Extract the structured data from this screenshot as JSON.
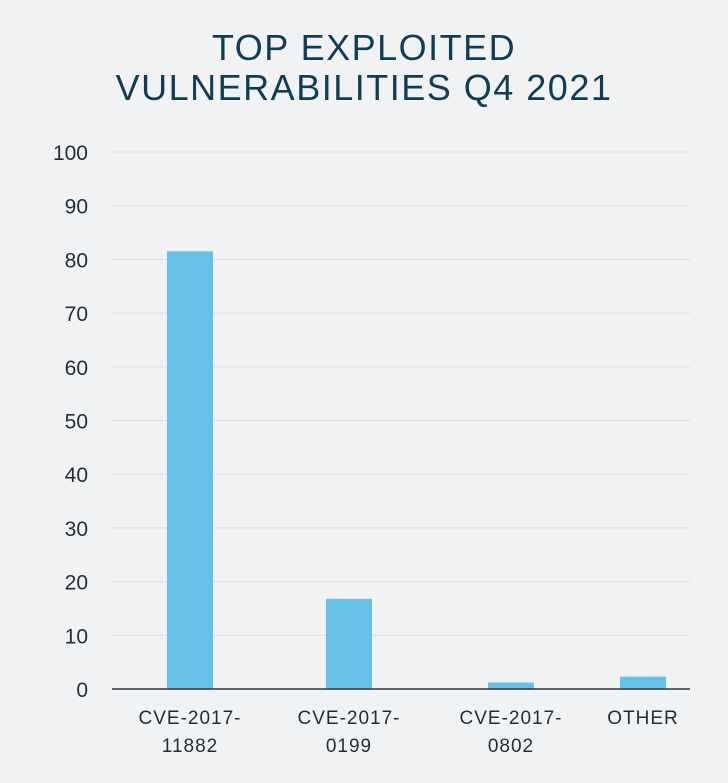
{
  "chart_data": {
    "type": "bar",
    "title_lines": [
      "TOP EXPLOITED",
      "VULNERABILITIES Q4 2021"
    ],
    "categories": [
      [
        "CVE-2017-",
        "11882"
      ],
      [
        "CVE-2017-",
        "0199"
      ],
      [
        "CVE-2017-",
        "0802"
      ],
      [
        "OTHER"
      ]
    ],
    "values": [
      81.5,
      16.8,
      1.2,
      2.3
    ],
    "ylim": [
      0,
      100
    ],
    "yticks": [
      "0",
      "10",
      "20",
      "30",
      "40",
      "50",
      "60",
      "70",
      "80",
      "90",
      "100"
    ],
    "grid": true,
    "colors": {
      "bar": "#67c0e6",
      "grid": "#dfe1e4",
      "axis": "#2a3640",
      "title": "#0f3d56"
    }
  }
}
